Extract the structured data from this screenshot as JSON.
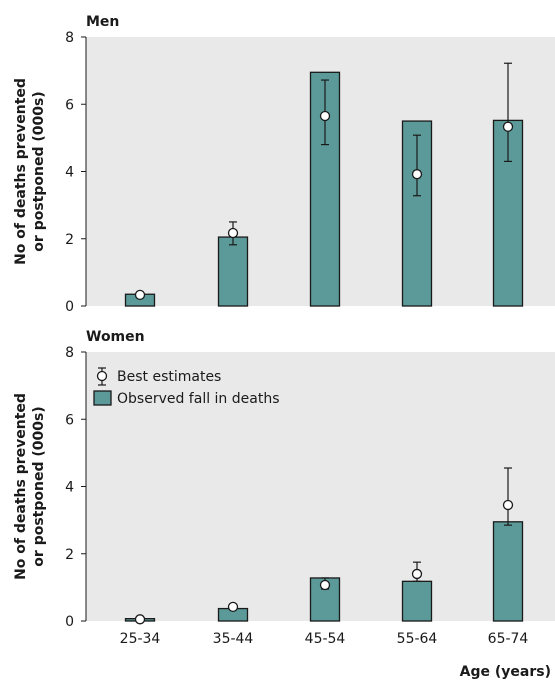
{
  "chart_data": {
    "type": "bar",
    "categories": [
      "25-34",
      "35-44",
      "45-54",
      "55-64",
      "65-74"
    ],
    "ylim": [
      0,
      8
    ],
    "yticks": [
      0,
      2,
      4,
      6,
      8
    ],
    "ylabel_line1": "No of deaths prevented",
    "ylabel_line2": "or postponed (000s)",
    "xlabel": "Age (years)",
    "colors": {
      "bar": "#5b9a98",
      "bar_edge": "#1a1a1a",
      "panel_bg": "#e9e9e9",
      "marker_fill": "#ffffff"
    },
    "legend": {
      "placement": "top-left",
      "panel": "Women",
      "best_label": "Best estimates",
      "observed_label": "Observed fall in deaths"
    },
    "panels": [
      {
        "title": "Men",
        "observed": [
          0.35,
          2.05,
          6.95,
          5.5,
          5.52
        ],
        "best": [
          0.33,
          2.17,
          5.65,
          3.92,
          5.33
        ],
        "err_low": [
          null,
          1.82,
          4.8,
          3.28,
          4.3
        ],
        "err_high": [
          null,
          2.5,
          6.72,
          5.08,
          7.22
        ]
      },
      {
        "title": "Women",
        "observed": [
          0.07,
          0.37,
          1.28,
          1.18,
          2.95
        ],
        "best": [
          0.05,
          0.42,
          1.07,
          1.4,
          3.45
        ],
        "err_low": [
          null,
          null,
          0.95,
          1.18,
          2.85
        ],
        "err_high": [
          null,
          null,
          1.28,
          1.75,
          4.55
        ]
      }
    ]
  }
}
